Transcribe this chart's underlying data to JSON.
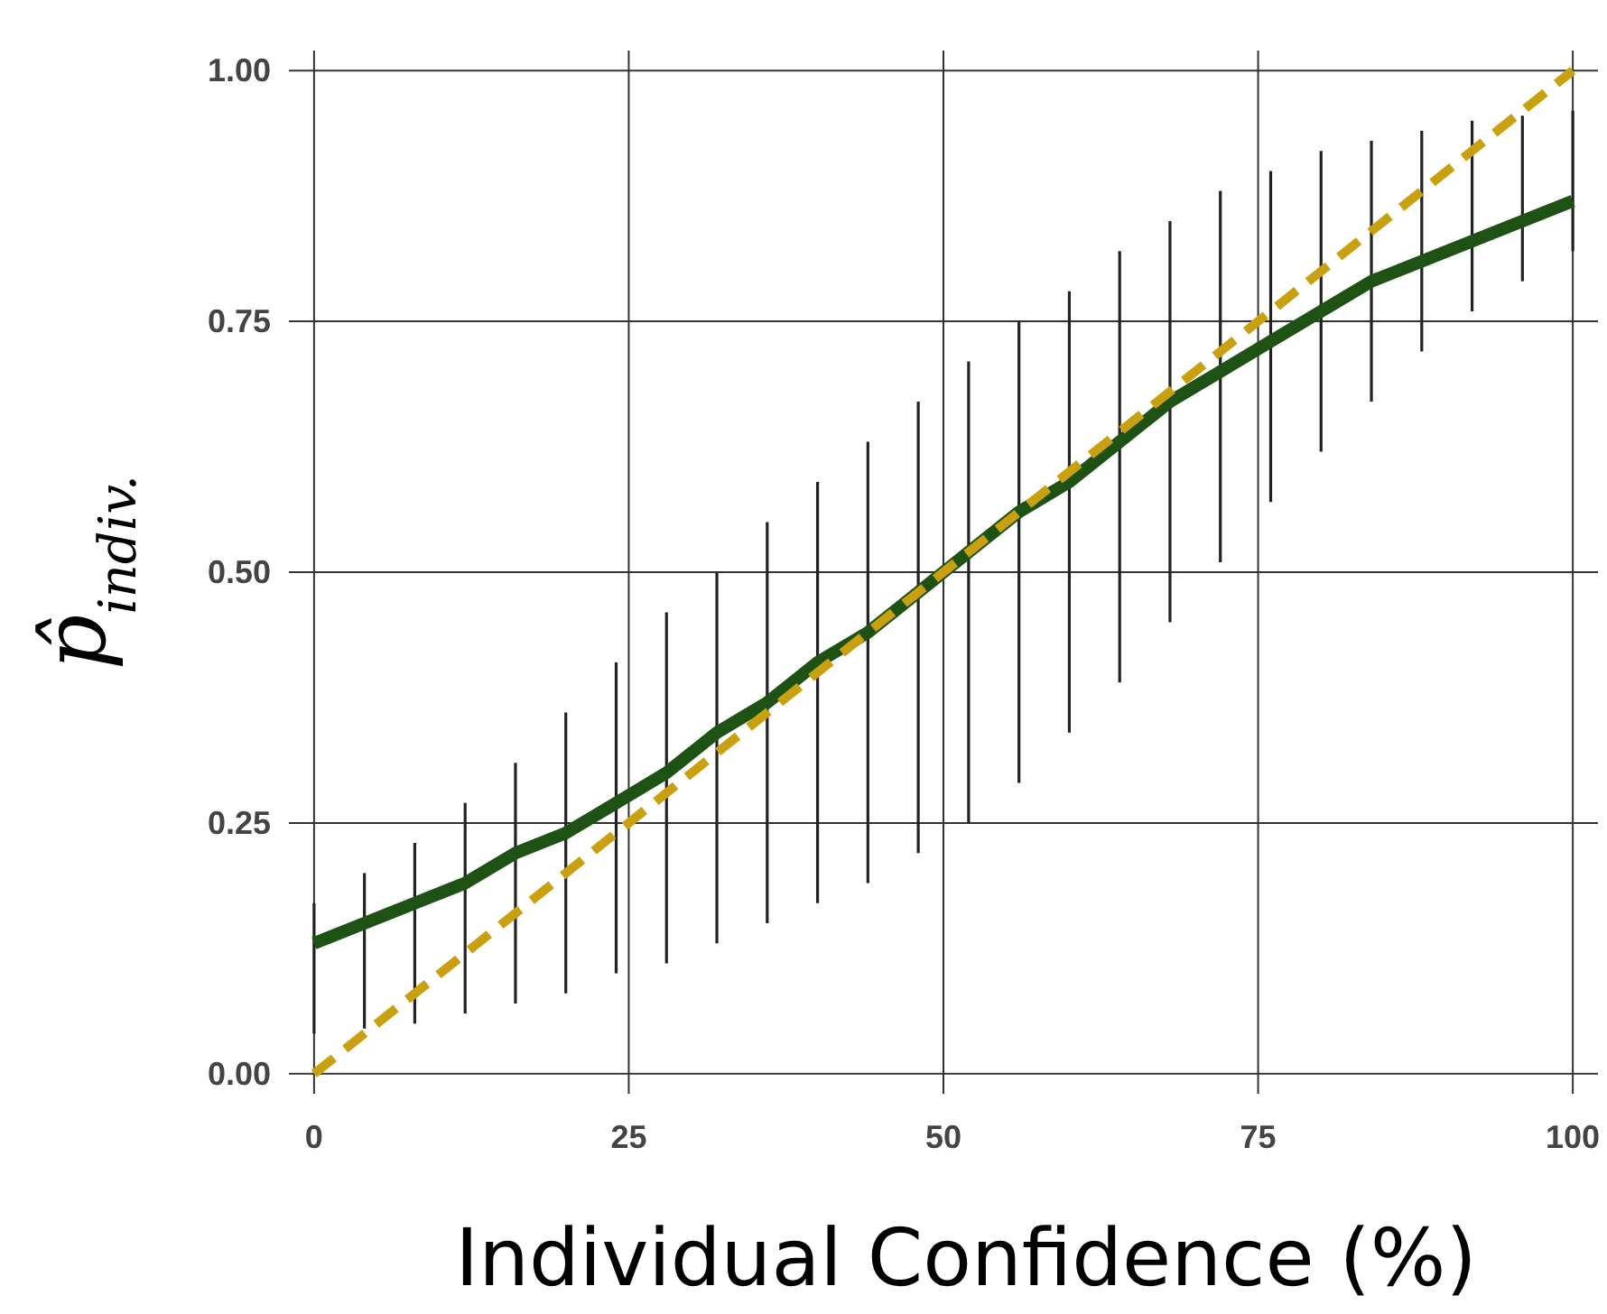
{
  "chart_data": {
    "type": "line",
    "xlabel": "Individual Confidence (%)",
    "ylabel": "p̂$_{indiv.}$",
    "xlim": [
      -2,
      102
    ],
    "ylim": [
      -0.02,
      1.02
    ],
    "xticks": [
      0,
      25,
      50,
      75,
      100
    ],
    "yticks": [
      {
        "value": 0,
        "label": "0.00"
      },
      {
        "value": 0.25,
        "label": "0.25"
      },
      {
        "value": 0.5,
        "label": "0.50"
      },
      {
        "value": 0.75,
        "label": "0.75"
      },
      {
        "value": 1,
        "label": "1.00"
      }
    ],
    "grid": true,
    "marker": "none",
    "series": [
      {
        "color": "#1d5214",
        "line_style": "solid",
        "x": [
          0,
          4,
          8,
          12,
          16,
          20,
          24,
          28,
          32,
          36,
          40,
          44,
          48,
          52,
          56,
          60,
          64,
          68,
          72,
          76,
          80,
          84,
          88,
          92,
          96,
          100
        ],
        "values": [
          0.13,
          0.15,
          0.17,
          0.19,
          0.22,
          0.24,
          0.27,
          0.3,
          0.34,
          0.37,
          0.41,
          0.44,
          0.48,
          0.52,
          0.56,
          0.59,
          0.63,
          0.67,
          0.7,
          0.73,
          0.76,
          0.79,
          0.81,
          0.83,
          0.85,
          0.87
        ],
        "errors": [
          [
            0.04,
            0.17
          ],
          [
            0.045,
            0.2
          ],
          [
            0.05,
            0.23
          ],
          [
            0.06,
            0.27
          ],
          [
            0.07,
            0.31
          ],
          [
            0.08,
            0.36
          ],
          [
            0.1,
            0.41
          ],
          [
            0.11,
            0.46
          ],
          [
            0.13,
            0.5
          ],
          [
            0.15,
            0.55
          ],
          [
            0.17,
            0.59
          ],
          [
            0.19,
            0.63
          ],
          [
            0.22,
            0.67
          ],
          [
            0.25,
            0.71
          ],
          [
            0.29,
            0.75
          ],
          [
            0.34,
            0.78
          ],
          [
            0.39,
            0.82
          ],
          [
            0.45,
            0.85
          ],
          [
            0.51,
            0.88
          ],
          [
            0.57,
            0.9
          ],
          [
            0.62,
            0.92
          ],
          [
            0.67,
            0.93
          ],
          [
            0.72,
            0.94
          ],
          [
            0.76,
            0.95
          ],
          [
            0.79,
            0.955
          ],
          [
            0.82,
            0.96
          ]
        ]
      },
      {
        "color": "#c9a010",
        "line_style": "dashed",
        "x": [
          0,
          100
        ],
        "values": [
          0,
          1
        ]
      }
    ]
  }
}
